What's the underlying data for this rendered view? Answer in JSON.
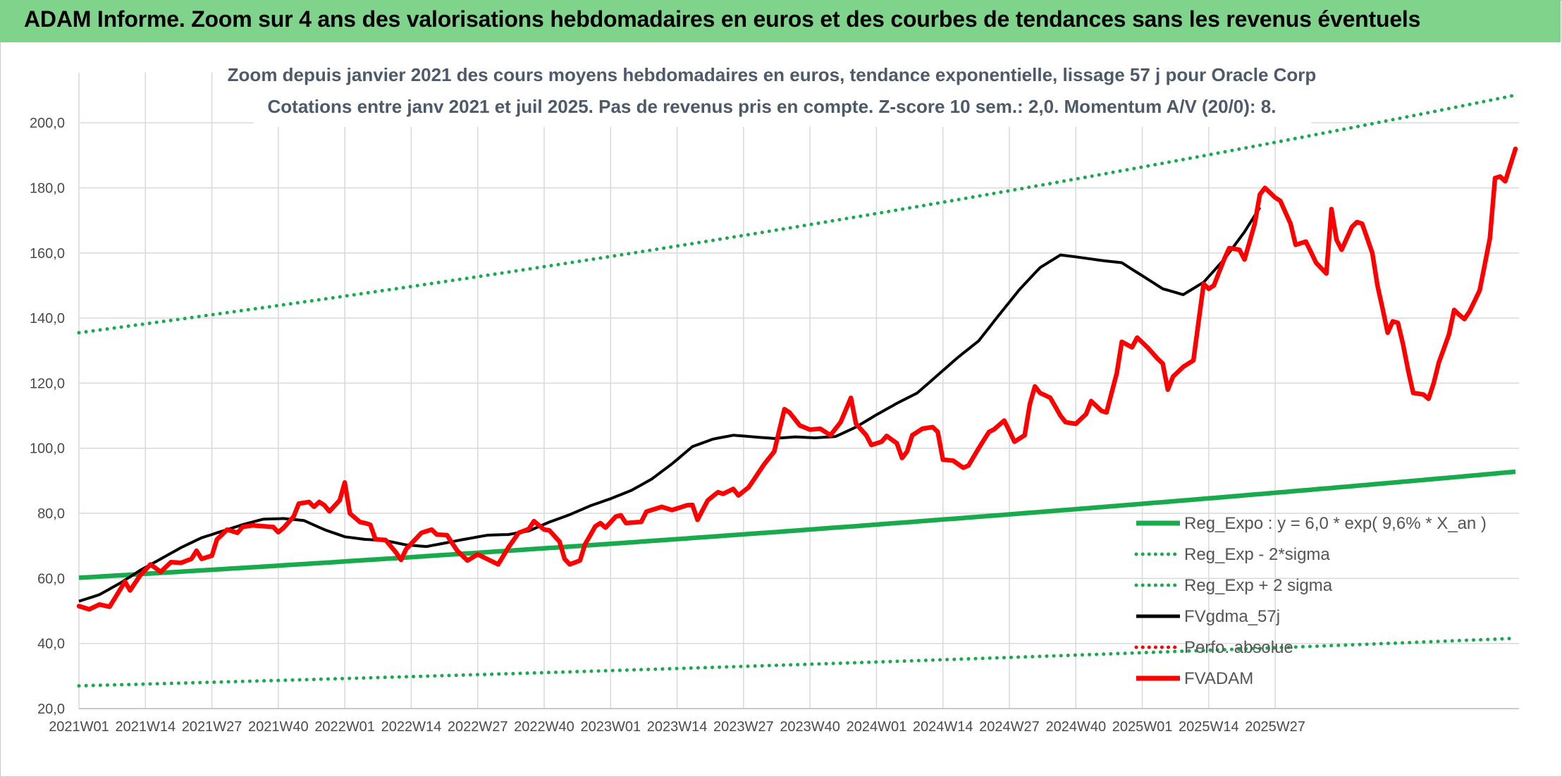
{
  "header": {
    "title": "ADAM Informe. Zoom sur 4 ans des valorisations hebdomadaires en euros et des courbes de tendances sans les revenus éventuels"
  },
  "chart_data": {
    "type": "line",
    "subtitle_line1": "Zoom depuis janvier 2021 des cours moyens hebdomadaires en euros, tendance exponentielle, lissage 57 j pour Oracle Corp",
    "subtitle_line2": "Cotations entre janv 2021 et juil 2025. Pas de revenus pris en compte. Z-score 10 sem.: 2,0. Momentum A/V (20/0): 8.",
    "ylim": [
      20,
      210
    ],
    "y_ticks": [
      "20,0",
      "40,0",
      "60,0",
      "80,0",
      "100,0",
      "120,0",
      "140,0",
      "160,0",
      "180,0",
      "200,0"
    ],
    "y_tick_values": [
      20,
      40,
      60,
      80,
      100,
      120,
      140,
      160,
      180,
      200
    ],
    "x_ticks": [
      "2021W01",
      "2021W14",
      "2021W27",
      "2021W40",
      "2022W01",
      "2022W14",
      "2022W27",
      "2022W40",
      "2023W01",
      "2023W14",
      "2023W27",
      "2023W40",
      "2024W01",
      "2024W14",
      "2024W27",
      "2024W40",
      "2025W01",
      "2025W14",
      "2025W27"
    ],
    "grid": true,
    "legend_position": "bottom-right",
    "colors": {
      "green": "#1aaa4e",
      "black": "#000000",
      "red": "#ff0000",
      "grid": "#d9d9d9"
    },
    "series": [
      {
        "name": "Reg_Expo : y = 6,0 * exp( 9,6% *  X_an )",
        "style": "solid",
        "color": "#1aaa4e",
        "start": 60.2,
        "end": 92.8
      },
      {
        "name": "Reg_Exp - 2*sigma",
        "style": "dotted",
        "color": "#1aaa4e",
        "start": 27.0,
        "end": 41.6
      },
      {
        "name": "Reg_Exp + 2 sigma",
        "style": "dotted",
        "color": "#1aaa4e",
        "start": 135.5,
        "end": 208.5
      },
      {
        "name": "FVgdma_57j",
        "style": "solid",
        "color": "#000000",
        "anchors": [
          [
            0,
            53
          ],
          [
            4,
            55
          ],
          [
            8,
            58.5
          ],
          [
            12,
            62.5
          ],
          [
            16,
            66
          ],
          [
            20,
            69.5
          ],
          [
            24,
            72.5
          ],
          [
            28,
            74.5
          ],
          [
            32,
            76.5
          ],
          [
            36,
            78.2
          ],
          [
            40,
            78.4
          ],
          [
            44,
            77.8
          ],
          [
            48,
            75
          ],
          [
            52,
            72.8
          ],
          [
            56,
            72
          ],
          [
            60,
            71.6
          ],
          [
            64,
            70.3
          ],
          [
            68,
            69.8
          ],
          [
            72,
            71
          ],
          [
            76,
            72.2
          ],
          [
            80,
            73.3
          ],
          [
            84,
            73.5
          ],
          [
            88,
            74.6
          ],
          [
            92,
            77.3
          ],
          [
            96,
            79.6
          ],
          [
            100,
            82.3
          ],
          [
            104,
            84.5
          ],
          [
            108,
            87
          ],
          [
            112,
            90.5
          ],
          [
            116,
            95.2
          ],
          [
            120,
            100.5
          ],
          [
            124,
            102.8
          ],
          [
            128,
            104
          ],
          [
            132,
            103.5
          ],
          [
            136,
            103
          ],
          [
            140,
            103.5
          ],
          [
            144,
            103.2
          ],
          [
            148,
            103.6
          ],
          [
            152,
            106.5
          ],
          [
            156,
            110.3
          ],
          [
            160,
            113.8
          ],
          [
            164,
            117
          ],
          [
            168,
            122.5
          ],
          [
            172,
            128
          ],
          [
            176,
            133
          ],
          [
            180,
            141
          ],
          [
            184,
            148.8
          ],
          [
            188,
            155.5
          ],
          [
            192,
            159.4
          ],
          [
            196,
            158.6
          ],
          [
            200,
            157.7
          ],
          [
            204,
            157
          ],
          [
            208,
            153
          ],
          [
            212,
            149
          ],
          [
            216,
            147.2
          ],
          [
            220,
            151
          ],
          [
            224,
            158
          ],
          [
            228,
            166.5
          ],
          [
            231,
            174
          ]
        ]
      },
      {
        "name": "Perfo. absolue",
        "style": "dotted",
        "color": "#ff0000"
      },
      {
        "name": "FVADAM",
        "style": "solid",
        "color": "#ff0000",
        "anchors": [
          [
            0,
            51.5
          ],
          [
            2,
            50.5
          ],
          [
            4,
            52
          ],
          [
            6,
            51.3
          ],
          [
            9,
            59
          ],
          [
            10,
            56.3
          ],
          [
            12,
            61
          ],
          [
            14,
            64.3
          ],
          [
            16,
            62
          ],
          [
            18,
            65
          ],
          [
            20,
            64.8
          ],
          [
            22,
            66
          ],
          [
            23,
            68.5
          ],
          [
            24,
            66
          ],
          [
            26,
            67
          ],
          [
            27,
            72
          ],
          [
            29,
            75
          ],
          [
            31,
            74
          ],
          [
            32,
            75.8
          ],
          [
            34,
            76.3
          ],
          [
            38,
            75.8
          ],
          [
            39,
            74.2
          ],
          [
            40,
            75.5
          ],
          [
            42,
            79
          ],
          [
            43,
            83
          ],
          [
            45,
            83.5
          ],
          [
            46,
            82
          ],
          [
            47,
            83.5
          ],
          [
            48,
            82.5
          ],
          [
            49,
            80.6
          ],
          [
            51,
            84
          ],
          [
            52,
            89.5
          ],
          [
            53,
            80
          ],
          [
            55,
            77.3
          ],
          [
            56,
            77
          ],
          [
            57,
            76.5
          ],
          [
            58,
            72
          ],
          [
            60,
            71.8
          ],
          [
            62,
            68
          ],
          [
            63,
            65.7
          ],
          [
            64,
            69
          ],
          [
            67,
            74
          ],
          [
            69,
            75
          ],
          [
            70,
            73.5
          ],
          [
            72,
            73.3
          ],
          [
            74,
            68.5
          ],
          [
            76,
            65.5
          ],
          [
            78,
            67.4
          ],
          [
            82,
            64.3
          ],
          [
            84,
            69.5
          ],
          [
            86,
            74
          ],
          [
            88,
            75.2
          ],
          [
            89,
            77.6
          ],
          [
            91,
            75
          ],
          [
            92,
            74.8
          ],
          [
            94,
            71.3
          ],
          [
            95,
            66
          ],
          [
            96,
            64.3
          ],
          [
            98,
            65.5
          ],
          [
            99,
            70.5
          ],
          [
            101,
            76
          ],
          [
            102,
            77
          ],
          [
            103,
            75.6
          ],
          [
            105,
            79
          ],
          [
            106,
            79.4
          ],
          [
            107,
            77
          ],
          [
            110,
            77.4
          ],
          [
            111,
            80.5
          ],
          [
            112,
            81
          ],
          [
            114,
            82
          ],
          [
            116,
            81
          ],
          [
            118,
            82
          ],
          [
            119,
            82.5
          ],
          [
            120,
            82.6
          ],
          [
            121,
            78
          ],
          [
            123,
            84
          ],
          [
            125,
            86.5
          ],
          [
            126,
            86
          ],
          [
            128,
            87.5
          ],
          [
            129,
            85.5
          ],
          [
            131,
            88
          ],
          [
            134,
            95
          ],
          [
            136,
            99
          ],
          [
            138,
            112
          ],
          [
            139,
            111
          ],
          [
            141,
            107
          ],
          [
            143,
            105.7
          ],
          [
            145,
            106
          ],
          [
            147,
            104
          ],
          [
            149,
            108
          ],
          [
            151,
            115.5
          ],
          [
            152,
            107.5
          ],
          [
            154,
            104
          ],
          [
            155,
            101
          ],
          [
            157,
            102
          ],
          [
            158,
            103.8
          ],
          [
            160,
            101.5
          ],
          [
            161,
            97
          ],
          [
            162,
            99
          ],
          [
            163,
            104
          ],
          [
            165,
            106
          ],
          [
            167,
            106.5
          ],
          [
            168,
            105
          ],
          [
            169,
            96.5
          ],
          [
            171,
            96.2
          ],
          [
            173,
            94
          ],
          [
            174,
            94.7
          ],
          [
            176,
            100
          ],
          [
            178,
            105
          ],
          [
            179,
            105.8
          ],
          [
            181,
            108.5
          ],
          [
            182,
            105.3
          ],
          [
            183,
            102
          ],
          [
            185,
            104
          ],
          [
            186,
            113.5
          ],
          [
            187,
            119
          ],
          [
            188,
            117
          ],
          [
            190,
            115.5
          ],
          [
            192,
            110
          ],
          [
            193,
            108
          ],
          [
            195,
            107.5
          ],
          [
            197,
            110.5
          ],
          [
            198,
            114.5
          ],
          [
            200,
            111.5
          ],
          [
            201,
            111
          ],
          [
            203,
            123
          ],
          [
            204,
            132.7
          ],
          [
            206,
            131
          ],
          [
            207,
            134
          ],
          [
            209,
            131
          ],
          [
            211,
            127.5
          ],
          [
            212,
            126
          ],
          [
            213,
            118
          ],
          [
            214,
            122
          ],
          [
            216,
            125
          ],
          [
            218,
            127
          ],
          [
            220,
            150.5
          ],
          [
            221,
            149
          ],
          [
            222,
            150
          ],
          [
            224,
            158
          ],
          [
            225,
            161.5
          ],
          [
            227,
            161
          ],
          [
            228,
            158
          ],
          [
            230,
            169
          ],
          [
            231,
            178
          ],
          [
            232,
            180
          ],
          [
            234,
            177
          ],
          [
            235,
            176
          ],
          [
            237,
            169
          ],
          [
            238,
            162.5
          ],
          [
            240,
            163.5
          ],
          [
            242,
            157
          ],
          [
            244,
            153.7
          ],
          [
            245,
            173.5
          ],
          [
            246,
            164
          ],
          [
            247,
            161
          ],
          [
            249,
            168
          ],
          [
            250,
            169.5
          ],
          [
            251,
            169
          ],
          [
            253,
            160
          ],
          [
            254,
            150
          ],
          [
            255,
            143
          ],
          [
            256,
            135.5
          ],
          [
            257,
            139
          ],
          [
            258,
            138.5
          ],
          [
            259,
            132
          ],
          [
            260,
            124
          ],
          [
            261,
            117
          ],
          [
            263,
            116.5
          ],
          [
            264,
            115.2
          ],
          [
            265,
            120
          ],
          [
            266,
            126.3
          ],
          [
            268,
            135
          ],
          [
            269,
            142.5
          ],
          [
            270,
            141
          ],
          [
            271,
            139.7
          ],
          [
            272,
            142
          ],
          [
            274,
            148.5
          ],
          [
            276,
            164.5
          ],
          [
            277,
            183
          ],
          [
            278,
            183.5
          ],
          [
            279,
            182
          ],
          [
            281,
            192
          ]
        ]
      }
    ]
  }
}
